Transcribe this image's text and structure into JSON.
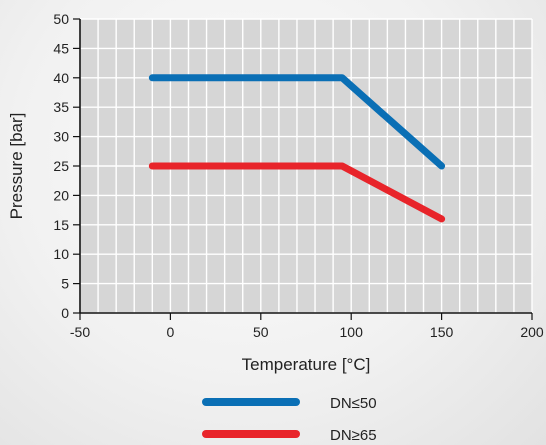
{
  "chart_data": {
    "type": "line",
    "xlabel": "Temperature [°C]",
    "ylabel": "Pressure [bar]",
    "xlim": [
      -50,
      200
    ],
    "ylim": [
      0,
      50
    ],
    "x_ticks": [
      -50,
      0,
      50,
      100,
      150,
      200
    ],
    "y_ticks": [
      0,
      5,
      10,
      15,
      20,
      25,
      30,
      35,
      40,
      45,
      50
    ],
    "grid": true,
    "legend_position": "bottom",
    "series": [
      {
        "name": "DN≤50",
        "color": "#0a6fb5",
        "x": [
          -10,
          95,
          150
        ],
        "y": [
          40,
          40,
          25
        ]
      },
      {
        "name": "DN≥65",
        "color": "#e8242a",
        "x": [
          -10,
          95,
          150
        ],
        "y": [
          25,
          25,
          16
        ]
      }
    ]
  }
}
